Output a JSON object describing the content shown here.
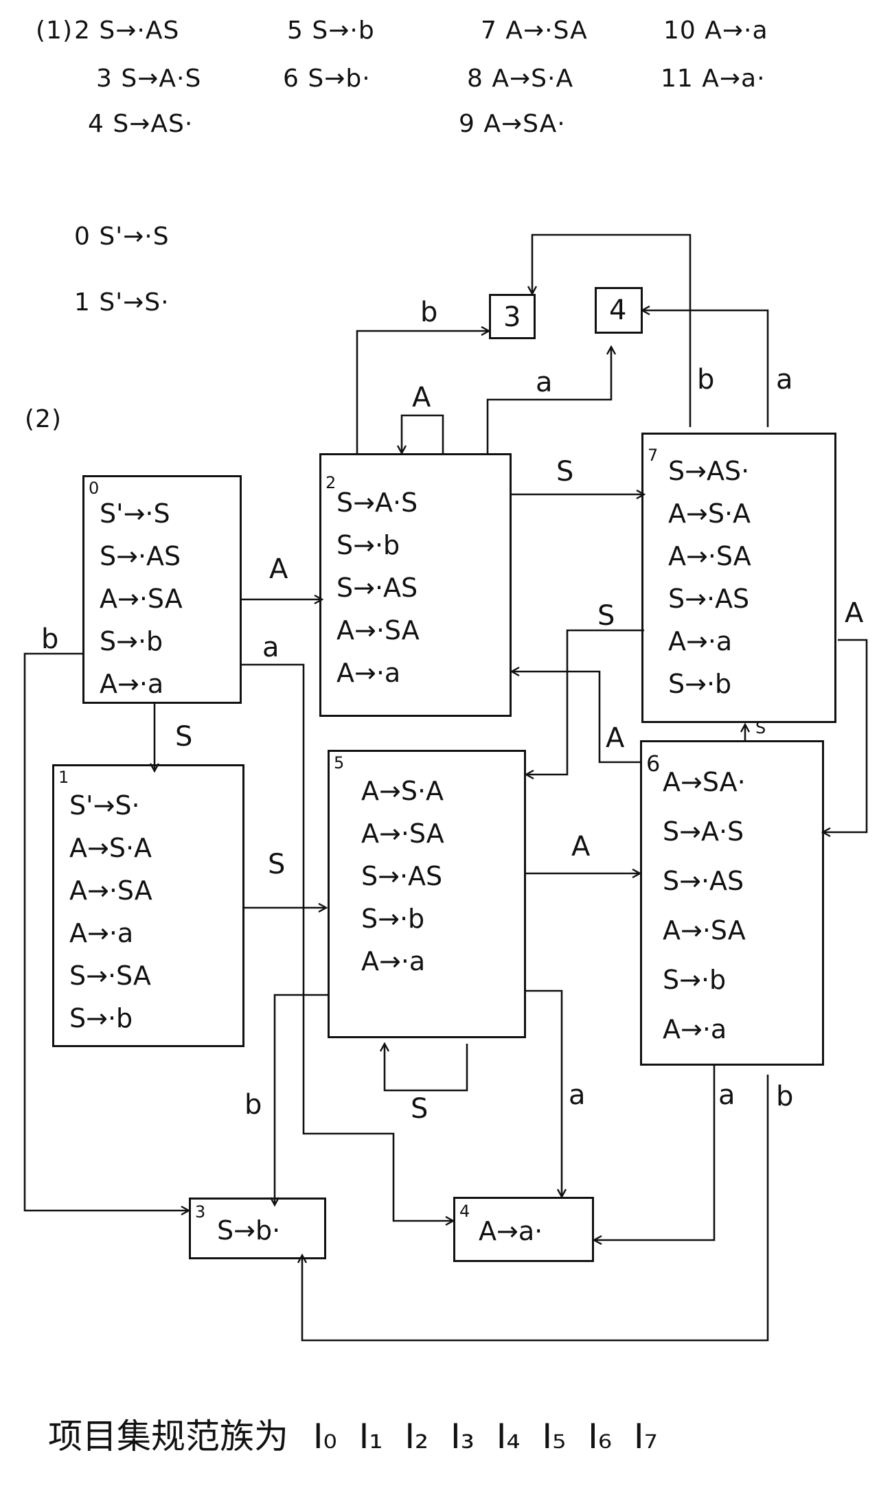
{
  "part1": {
    "label": "(1)",
    "productions": [
      {
        "num": "2",
        "text": "S→·AS"
      },
      {
        "num": "3",
        "text": "S→A·S"
      },
      {
        "num": "4",
        "text": "S→AS·"
      },
      {
        "num": "5",
        "text": "S→·b"
      },
      {
        "num": "6",
        "text": "S→b·"
      },
      {
        "num": "7",
        "text": "A→·SA"
      },
      {
        "num": "8",
        "text": "A→S·A"
      },
      {
        "num": "9",
        "text": "A→SA·"
      },
      {
        "num": "10",
        "text": "A→·a"
      },
      {
        "num": "11",
        "text": "A→a·"
      },
      {
        "num": "0",
        "text": "S'→·S"
      },
      {
        "num": "1",
        "text": "S'→S·"
      }
    ]
  },
  "part2": {
    "label": "(2)",
    "states": [
      {
        "id": "0",
        "items": [
          "S'→·S",
          "S→·AS",
          "A→·SA",
          "S→·b",
          "A→·a"
        ]
      },
      {
        "id": "1",
        "items": [
          "S'→S·",
          "A→S·A",
          "A→·SA",
          "A→·a",
          "S→·SA",
          "S→·b"
        ]
      },
      {
        "id": "2",
        "items": [
          "S→A·S",
          "S→·b",
          "S→·AS",
          "A→·SA",
          "A→·a"
        ]
      },
      {
        "id": "3",
        "items": [
          "S→b·"
        ]
      },
      {
        "id": "4",
        "items": [
          "A→a·"
        ]
      },
      {
        "id": "5",
        "items": [
          "A→S·A",
          "A→·SA",
          "S→·AS",
          "S→·b",
          "A→·a"
        ]
      },
      {
        "id": "6",
        "items": [
          "A→SA·",
          "S→A·S",
          "S→·AS",
          "A→·SA",
          "S→·b",
          "A→·a"
        ]
      },
      {
        "id": "7",
        "items": [
          "S→AS·",
          "A→S·A",
          "A→·SA",
          "S→·AS",
          "A→·a",
          "S→·b"
        ]
      }
    ],
    "ref_boxes": [
      {
        "id": "3",
        "text": "3"
      },
      {
        "id": "4",
        "text": "4"
      }
    ],
    "edge_labels": {
      "e0_2": "A",
      "e0_1": "S",
      "e0_3": "b",
      "e0_4": "a",
      "e1_5": "S",
      "e2_self": "A",
      "e2_3": "b",
      "e2_4": "a",
      "e2_7": "S",
      "e5_self": "S",
      "e5_6": "A",
      "e5_3": "b",
      "e5_4": "a",
      "e6_2": "A",
      "e6_4": "a",
      "e6_3": "b",
      "e6_7": "S",
      "e7_3": "b",
      "e7_4": "a",
      "e7_5": "S",
      "e7_6": "A"
    }
  },
  "footer": {
    "text": "项目集规范族为",
    "sets": [
      "I₀",
      "I₁",
      "I₂",
      "I₃",
      "I₄",
      "I₅",
      "I₆",
      "I₇"
    ]
  }
}
